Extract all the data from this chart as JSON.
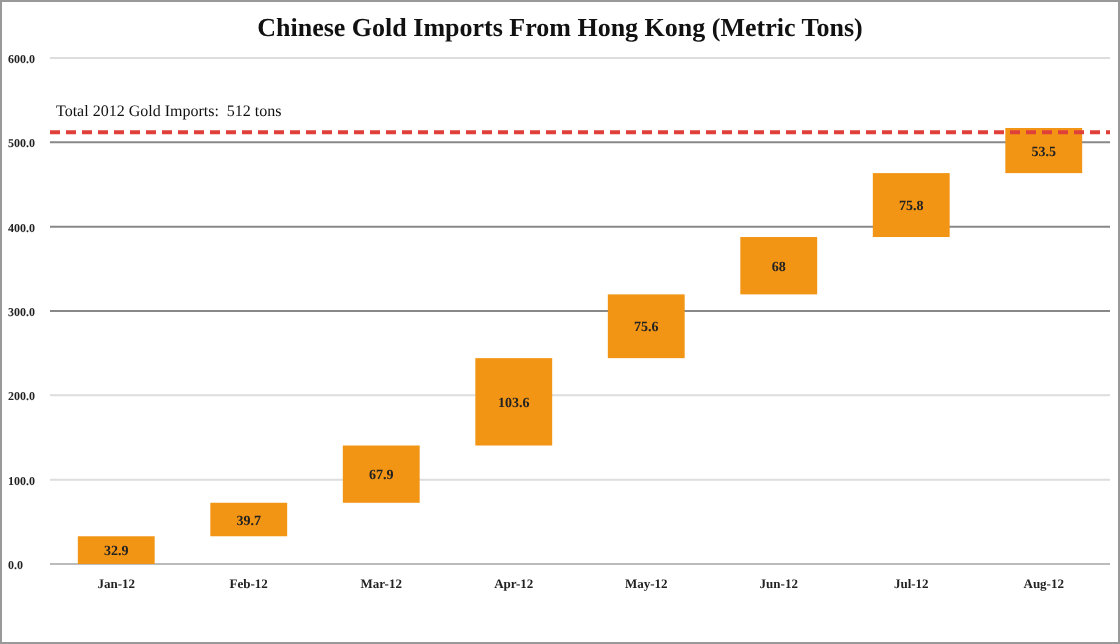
{
  "chart_data": {
    "type": "bar",
    "title": "Chinese Gold Imports From Hong Kong (Metric Tons)",
    "categories": [
      "Jan-12",
      "Feb-12",
      "Mar-12",
      "Apr-12",
      "May-12",
      "Jun-12",
      "Jul-12",
      "Aug-12"
    ],
    "values": [
      32.9,
      39.7,
      67.9,
      103.6,
      75.6,
      68,
      75.8,
      53.5
    ],
    "base": [
      0,
      32.9,
      72.6,
      140.5,
      244.1,
      319.7,
      387.7,
      463.5
    ],
    "color": "#f39514",
    "ylim": [
      0,
      600
    ],
    "yticks": [
      {
        "value": 0,
        "label": "0.0"
      },
      {
        "value": 100,
        "label": "100.0"
      },
      {
        "value": 200,
        "label": "200.0"
      },
      {
        "value": 300,
        "label": "300.0"
      },
      {
        "value": 400,
        "label": "400.0"
      },
      {
        "value": 500,
        "label": "500.0"
      },
      {
        "value": 600,
        "label": "600.0"
      }
    ],
    "grid": "y",
    "data_labels": true,
    "ref_lines": [
      {
        "axis": "y",
        "value": 512,
        "label": "Total 2012 Gold Imports:  512 tons",
        "color": "#e0403a",
        "line_style": "dashed"
      }
    ]
  }
}
